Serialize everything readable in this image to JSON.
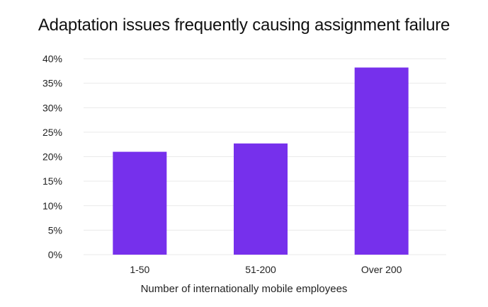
{
  "chart_data": {
    "type": "bar",
    "title": "Adaptation issues frequently causing assignment failure",
    "xlabel": "Number of internationally mobile employees",
    "ylabel": "",
    "categories": [
      "1-50",
      "51-200",
      "Over 200"
    ],
    "values": [
      21,
      22.7,
      38.2
    ],
    "ylim": [
      0,
      40
    ],
    "y_ticks": [
      0,
      5,
      10,
      15,
      20,
      25,
      30,
      35,
      40
    ],
    "y_tick_labels": [
      "0%",
      "5%",
      "10%",
      "15%",
      "20%",
      "25%",
      "30%",
      "35%",
      "40%"
    ],
    "grid": true,
    "legend": "none",
    "bar_color": "#7630ec",
    "grid_color": "#e9e9e9"
  }
}
